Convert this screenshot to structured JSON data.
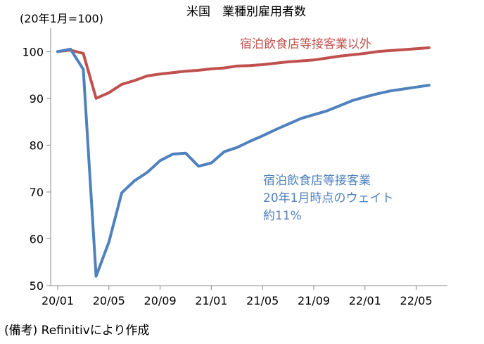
{
  "chart_data": {
    "type": "line",
    "title": "米国　業種別雇用者数",
    "ylabel": "(20年1月=100)",
    "xlabel": "",
    "ylim": [
      50,
      105
    ],
    "yticks": [
      50,
      60,
      70,
      80,
      90,
      100
    ],
    "x_ticks": [
      "20/01",
      "20/05",
      "20/09",
      "21/01",
      "21/05",
      "21/09",
      "22/01",
      "22/05"
    ],
    "x": [
      "20/01",
      "20/02",
      "20/03",
      "20/04",
      "20/05",
      "20/06",
      "20/07",
      "20/08",
      "20/09",
      "20/10",
      "20/11",
      "20/12",
      "21/01",
      "21/02",
      "21/03",
      "21/04",
      "21/05",
      "21/06",
      "21/07",
      "21/08",
      "21/09",
      "21/10",
      "21/11",
      "21/12",
      "22/01",
      "22/02",
      "22/03",
      "22/04",
      "22/05",
      "22/06"
    ],
    "grid": false,
    "series": [
      {
        "name": "宿泊飲食店等接客業以外",
        "color": "#c0504d",
        "values": [
          100,
          100.3,
          99.6,
          90.0,
          91.2,
          93.0,
          93.8,
          94.8,
          95.2,
          95.5,
          95.8,
          96.0,
          96.3,
          96.5,
          96.9,
          97.0,
          97.2,
          97.5,
          97.8,
          98.0,
          98.2,
          98.6,
          99.0,
          99.3,
          99.6,
          100.0,
          100.2,
          100.4,
          100.6,
          100.8
        ]
      },
      {
        "name": "宿泊飲食店等接客業",
        "color": "#4f81bd",
        "values": [
          100,
          100.5,
          96.2,
          52.0,
          59.3,
          69.8,
          72.4,
          74.2,
          76.7,
          78.1,
          78.3,
          75.5,
          76.2,
          78.6,
          79.5,
          80.8,
          82.0,
          83.3,
          84.5,
          85.7,
          86.5,
          87.3,
          88.4,
          89.5,
          90.3,
          91.0,
          91.6,
          92.0,
          92.4,
          92.8
        ]
      }
    ],
    "annotations": {
      "red_label": "宿泊飲食店等接客業以外",
      "blue_label_1": "宿泊飲食店等接客業",
      "blue_label_2": "20年1月時点のウェイト",
      "blue_label_3": "約11%"
    }
  },
  "footer": "(備考) Refinitivにより作成"
}
